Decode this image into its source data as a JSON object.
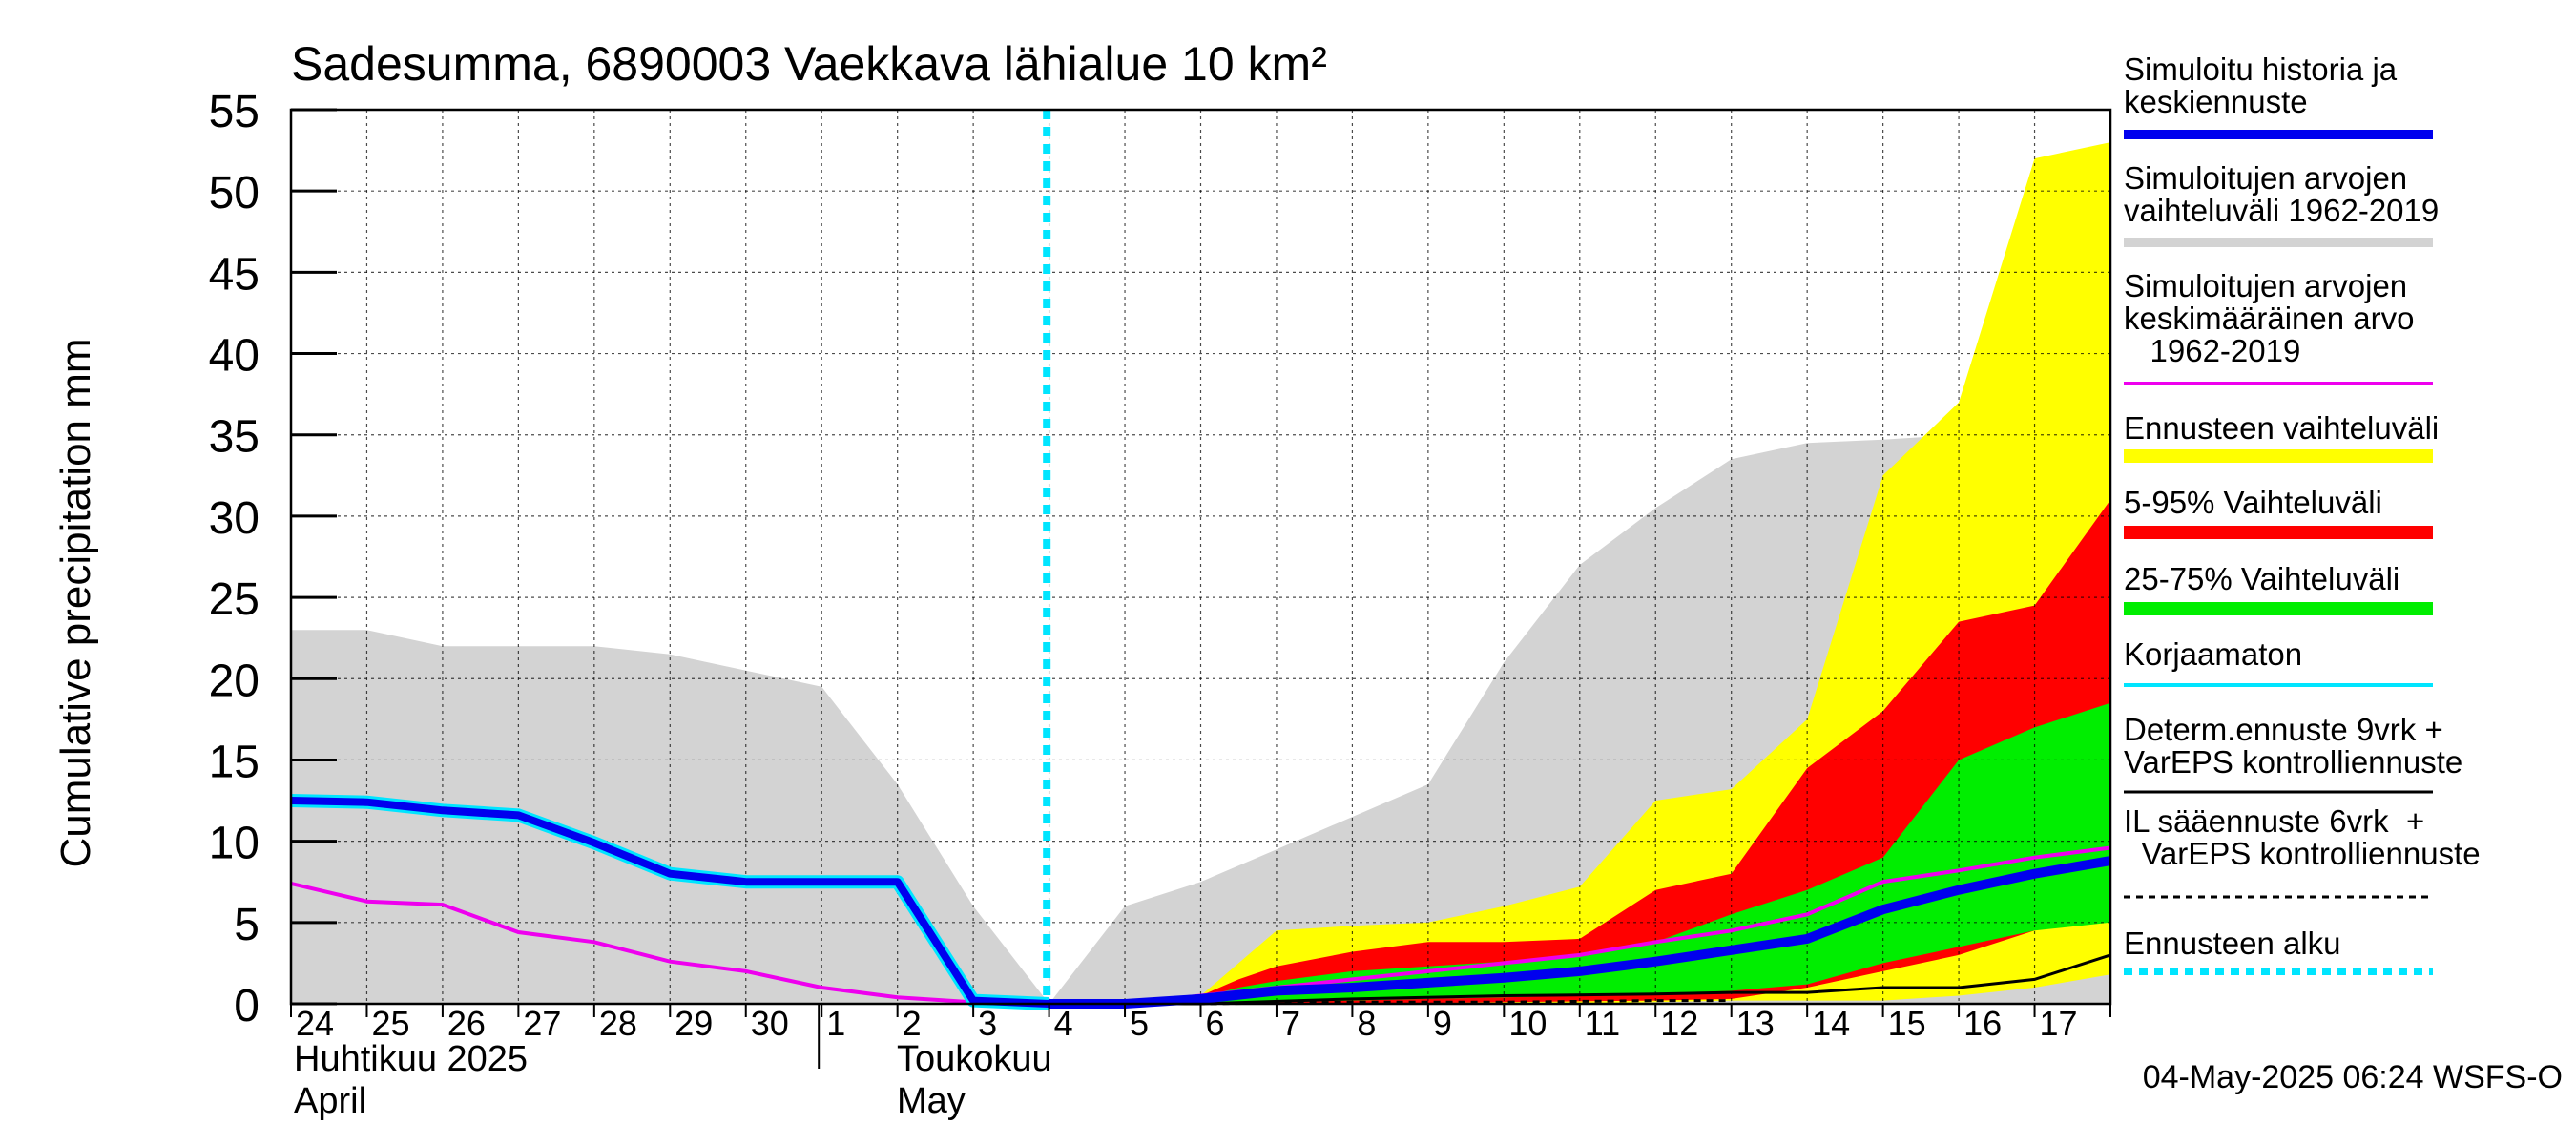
{
  "chart_data": {
    "type": "area",
    "title": "Sadesumma, 6890003 Vaekkava lähialue 10 km²",
    "ylabel": "Cumulative precipitation   mm",
    "ylim": [
      0,
      55
    ],
    "yticks": [
      "0",
      "5",
      "10",
      "15",
      "20",
      "25",
      "30",
      "35",
      "40",
      "45",
      "50",
      "55"
    ],
    "x_day_labels": [
      "24",
      "25",
      "26",
      "27",
      "28",
      "29",
      "30",
      "1",
      "2",
      "3",
      "4",
      "5",
      "6",
      "7",
      "8",
      "9",
      "10",
      "11",
      "12",
      "13",
      "14",
      "15",
      "16",
      "17"
    ],
    "month_labels": {
      "april_fi": "Huhtikuu  2025",
      "april_en": "April",
      "may_fi": "Toukokuu",
      "may_en": "May"
    },
    "forecast_start_index": 9.97,
    "timestamp": "04-May-2025 06:24 WSFS-O",
    "colors": {
      "history": "#0000ee",
      "history_outline": "#00e5ff",
      "range_1962_2019": "#d3d3d3",
      "mean_1962_2019": "#ee00ee",
      "ensemble_range": "#ffff00",
      "p5_95": "#ff0000",
      "p25_75": "#00ee00",
      "uncorrected": "#00e5ff",
      "determ": "#000000",
      "il": "#000000",
      "forecast_start": "#00e5ff"
    },
    "legend": [
      {
        "label": "Simuloitu historia ja\nkeskiennuste",
        "style": "thick-blue"
      },
      {
        "label": "Simuloitujen arvojen\nvaihteluväli 1962-2019",
        "style": "gray"
      },
      {
        "label": "Simuloitujen arvojen\nkeskimääräinen arvo\n   1962-2019",
        "style": "magenta"
      },
      {
        "label": "Ennusteen vaihteluväli",
        "style": "yellow"
      },
      {
        "label": "5-95% Vaihteluväli",
        "style": "red"
      },
      {
        "label": "25-75% Vaihteluväli",
        "style": "green"
      },
      {
        "label": "Korjaamaton",
        "style": "cyan"
      },
      {
        "label": "Determ.ennuste 9vrk +\nVarEPS kontrolliennuste",
        "style": "black"
      },
      {
        "label": "IL sääennuste 6vrk  +\n  VarEPS kontrolliennuste",
        "style": "dashed"
      },
      {
        "label": "Ennusteen alku",
        "style": "cyan-dotted"
      }
    ],
    "series": {
      "range_upper": {
        "x": [
          0,
          1,
          2,
          3,
          4,
          5,
          6,
          7,
          8,
          9,
          10,
          11,
          12,
          13,
          14,
          15,
          16,
          17,
          18,
          19,
          20,
          21,
          22,
          23,
          24
        ],
        "y": [
          23,
          23,
          22,
          22,
          22,
          21.5,
          20.5,
          19.5,
          13.5,
          6,
          0,
          6,
          7.5,
          9.5,
          11.5,
          13.5,
          21,
          27,
          30.5,
          33.5,
          34.5,
          34.7,
          35,
          35.3,
          35.5
        ]
      },
      "range_lower": {
        "x": [
          0,
          24
        ],
        "y": [
          0,
          0
        ]
      },
      "ensemble_upper": {
        "x": [
          10,
          11,
          12,
          12.5,
          13,
          14,
          15,
          16,
          17,
          18,
          19,
          20,
          21,
          22,
          23,
          24
        ],
        "y": [
          0,
          0,
          0.5,
          2.5,
          4.5,
          4.8,
          5,
          6,
          7.2,
          12.5,
          13.2,
          17.5,
          32.5,
          37,
          52,
          53
        ]
      },
      "ensemble_lower": {
        "x": [
          10,
          13,
          15,
          17,
          19,
          20,
          21,
          22,
          23,
          24
        ],
        "y": [
          0,
          0,
          0,
          0,
          0.2,
          0.2,
          0.2,
          0.5,
          1,
          1.8
        ]
      },
      "p95": {
        "x": [
          10,
          11,
          12,
          12.5,
          13,
          14,
          15,
          16,
          17,
          18,
          19,
          20,
          21,
          22,
          23,
          24
        ],
        "y": [
          0,
          0,
          0.5,
          1.5,
          2.3,
          3.2,
          3.8,
          3.8,
          4,
          7,
          8,
          14.5,
          18,
          23.5,
          24.5,
          31
        ]
      },
      "p5": {
        "x": [
          10,
          12,
          14,
          16,
          18,
          19,
          20,
          21,
          22,
          23,
          24
        ],
        "y": [
          0,
          0,
          0,
          0.1,
          0.2,
          0.3,
          1,
          2,
          3,
          4.5,
          5.3
        ]
      },
      "p75": {
        "x": [
          10,
          11,
          12,
          12.5,
          13,
          14,
          15,
          16,
          17,
          18,
          19,
          20,
          21,
          22,
          23,
          24
        ],
        "y": [
          0,
          0,
          0.4,
          1,
          1.4,
          2,
          2.3,
          2.6,
          3,
          3.8,
          5.5,
          7,
          9,
          15,
          17,
          18.5
        ]
      },
      "p25": {
        "x": [
          10,
          12,
          14,
          16,
          18,
          19,
          20,
          21,
          22,
          23,
          24
        ],
        "y": [
          0,
          0,
          0.2,
          0.4,
          0.6,
          0.8,
          1.2,
          2.5,
          3.5,
          4.5,
          5
        ]
      },
      "mean_1962_2019": {
        "x": [
          0,
          1,
          2,
          3,
          4,
          5,
          6,
          7,
          8,
          9,
          10,
          11,
          12,
          13,
          14,
          15,
          16,
          17,
          18,
          19,
          20,
          21,
          22,
          23,
          24
        ],
        "y": [
          7.4,
          6.3,
          6.1,
          4.4,
          3.8,
          2.6,
          2,
          1,
          0.4,
          0.1,
          0,
          0,
          0.5,
          1,
          1.5,
          2,
          2.5,
          3,
          3.8,
          4.5,
          5.5,
          7.5,
          8.2,
          9,
          9.6
        ]
      },
      "history": {
        "x": [
          0,
          1,
          2,
          3,
          4,
          5,
          6,
          7,
          8,
          9,
          10
        ],
        "y": [
          12.5,
          12.4,
          11.9,
          11.6,
          9.9,
          8,
          7.5,
          7.5,
          7.5,
          0.2,
          0
        ]
      },
      "forecast_mean": {
        "x": [
          10,
          11,
          12,
          13,
          14,
          15,
          16,
          17,
          18,
          19,
          20,
          21,
          22,
          23,
          24
        ],
        "y": [
          0,
          0,
          0.3,
          0.8,
          1,
          1.3,
          1.6,
          2,
          2.6,
          3.3,
          4,
          5.8,
          7,
          8,
          8.8
        ]
      },
      "determ": {
        "x": [
          10,
          12,
          14,
          16,
          18,
          19,
          20,
          21,
          22,
          23,
          24
        ],
        "y": [
          0,
          0,
          0.3,
          0.5,
          0.6,
          0.7,
          0.7,
          1,
          1,
          1.5,
          3
        ]
      },
      "il": {
        "x": [
          10,
          12,
          14,
          16,
          18,
          19
        ],
        "y": [
          0,
          0,
          0.1,
          0.1,
          0.2,
          0.2
        ]
      }
    }
  }
}
